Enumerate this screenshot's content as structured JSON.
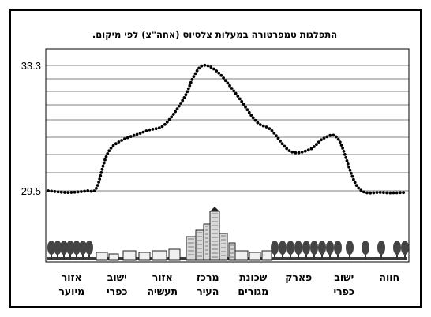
{
  "chart_data": {
    "type": "line",
    "title": "התפלגות טמפרטורה במעלות צלסיוס (אחה\"צ) לפי מיקום.",
    "xlabel": "",
    "ylabel": "",
    "ylim": [
      29.5,
      33.3
    ],
    "y_ticks_labeled": [
      "33.3",
      "29.5"
    ],
    "grid": true,
    "line_style": "dotted",
    "categories": [
      [
        "אזור",
        "מיוער"
      ],
      [
        "ישוב",
        "כפרי"
      ],
      [
        "אזור",
        "תעשיה"
      ],
      [
        "מרכז",
        "העיר"
      ],
      [
        "שכונת",
        "מגורים"
      ],
      [
        "פארק",
        ""
      ],
      [
        "ישוב",
        "כפרי"
      ],
      [
        "חווה",
        ""
      ]
    ],
    "series": [
      {
        "x": [
          0,
          0.4,
          0.8,
          1.0,
          1.3,
          2.0,
          2.4,
          2.8,
          3.0,
          3.2,
          3.5,
          3.9,
          4.3,
          4.6,
          5.0,
          5.4,
          5.7,
          6.0,
          6.4,
          6.9,
          7.4
        ],
        "values": [
          29.5,
          29.45,
          29.5,
          29.6,
          30.8,
          31.3,
          31.5,
          32.3,
          32.95,
          33.3,
          33.1,
          32.4,
          31.6,
          31.35,
          30.7,
          30.75,
          31.1,
          31.05,
          29.6,
          29.45,
          29.45
        ]
      }
    ]
  }
}
